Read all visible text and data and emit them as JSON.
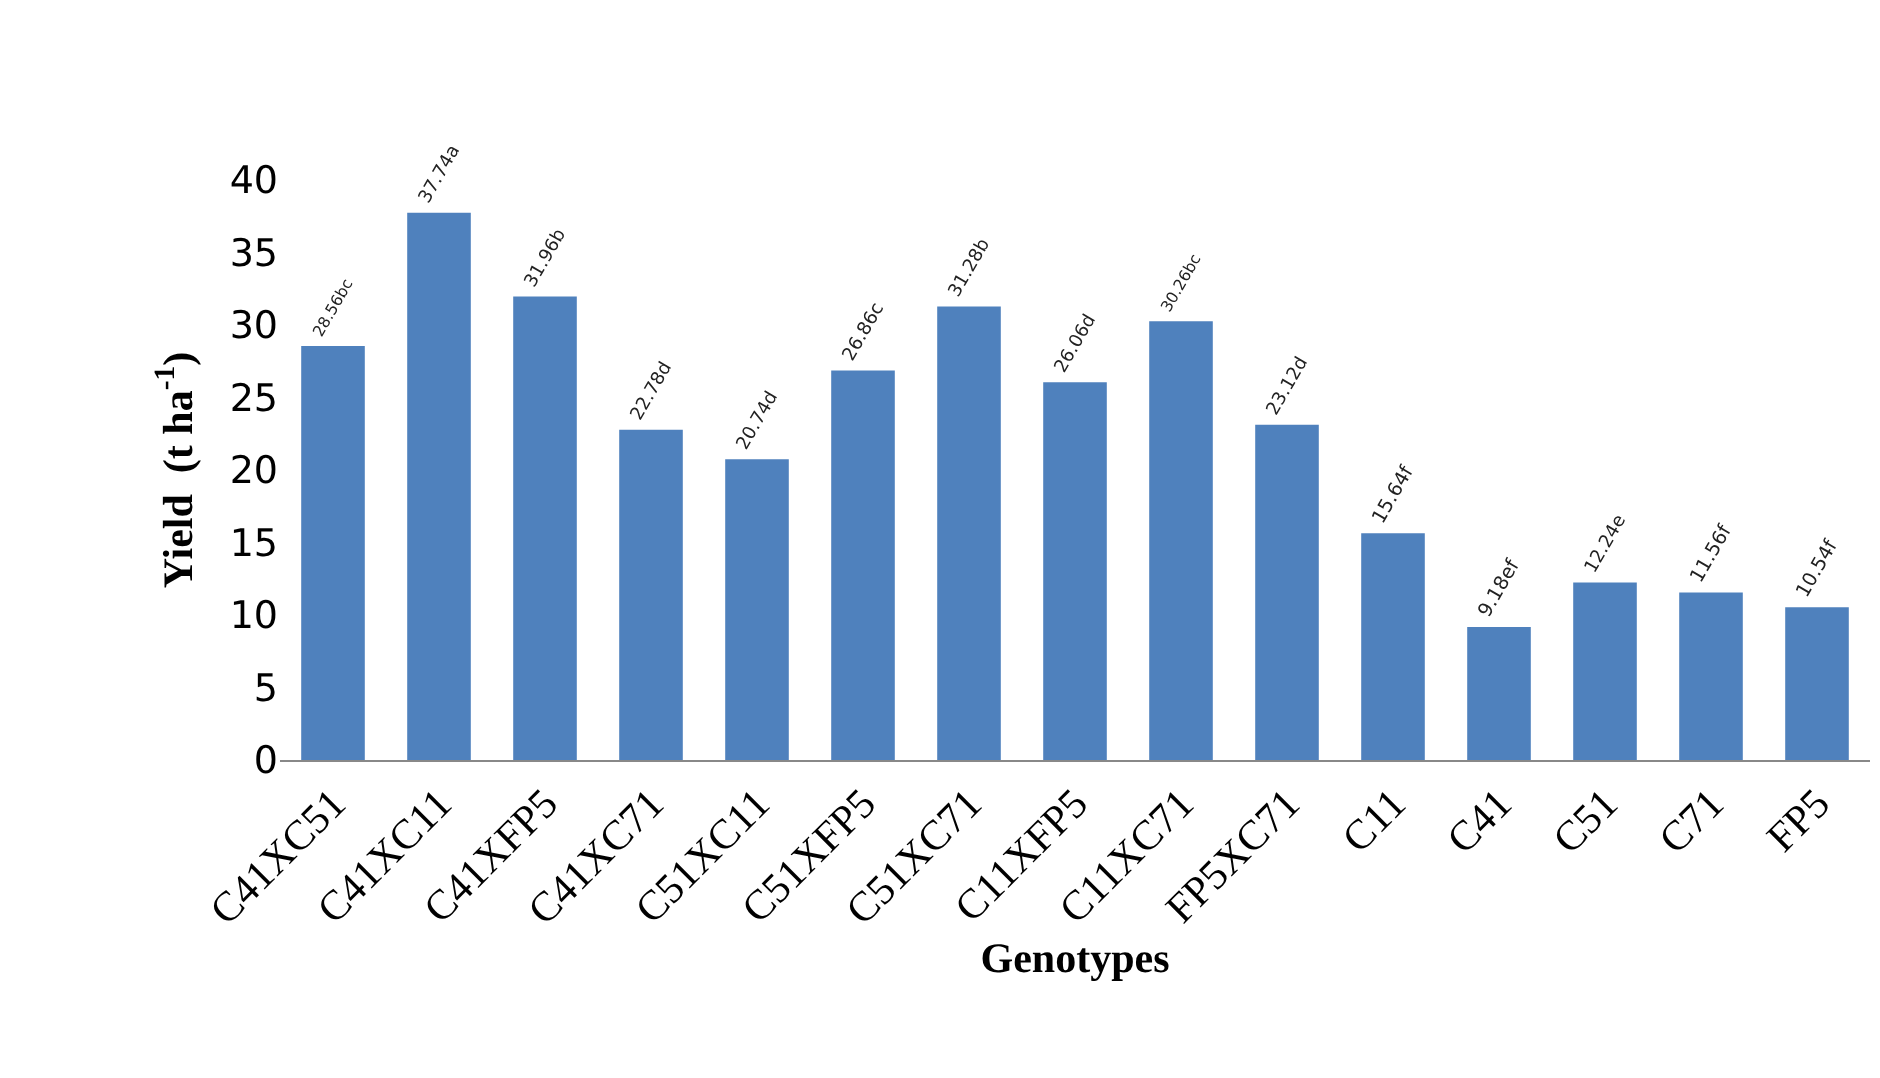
{
  "chart_data": {
    "type": "bar",
    "xlabel": "Genotypes",
    "ylabel": "Yield  (t ha$^{-1}$)",
    "categories": [
      "C41XC51",
      "C41XC11",
      "C41XFP5",
      "C41XC71",
      "C51XC11",
      "C51XFP5",
      "C51XC71",
      "C11XFP5",
      "C11XC71",
      "FP5XC71",
      "C11",
      "C41",
      "C51",
      "C71",
      "FP5"
    ],
    "values": [
      28.56,
      37.74,
      31.96,
      22.78,
      20.74,
      26.86,
      31.28,
      26.06,
      30.26,
      23.12,
      15.64,
      9.18,
      12.24,
      11.56,
      10.54
    ],
    "value_labels": [
      "28.56bc",
      "37.74a",
      "31.96b",
      "22.78d",
      "20.74d",
      "26.86c",
      "31.28b",
      "26.06d",
      "30.26bc",
      "23.12d",
      "15.64f",
      "9.18ef",
      "12.24e",
      "11.56f",
      "10.54f"
    ],
    "color": "#4f81bd",
    "ylim": [
      0,
      40
    ],
    "yticks": [
      0,
      5,
      10,
      15,
      20,
      25,
      30,
      35,
      40
    ],
    "grid": false,
    "legend": false
  }
}
